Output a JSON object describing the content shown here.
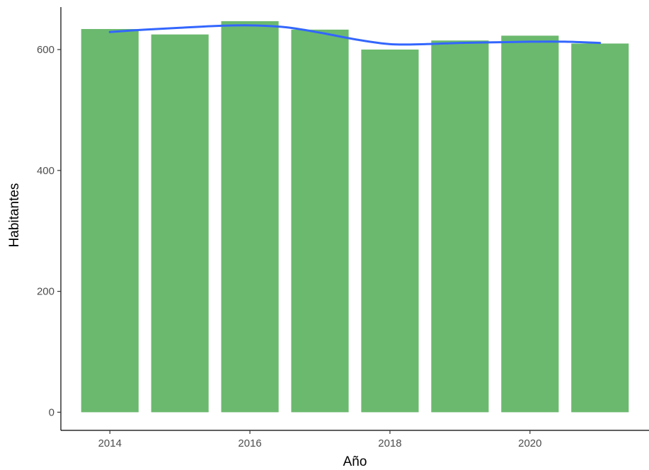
{
  "chart_data": {
    "type": "bar",
    "title": "",
    "xlabel": "Año",
    "ylabel": "Habitantes",
    "categories": [
      "2014",
      "2015",
      "2016",
      "2017",
      "2018",
      "2019",
      "2020",
      "2021"
    ],
    "x": [
      2014,
      2015,
      2016,
      2017,
      2018,
      2019,
      2020,
      2021
    ],
    "values": [
      634,
      625,
      647,
      633,
      600,
      615,
      623,
      610
    ],
    "xlim": [
      2013.3,
      2021.7
    ],
    "ylim": [
      -30,
      682
    ],
    "x_ticks": [
      2014,
      2016,
      2018,
      2020
    ],
    "x_tick_labels": [
      "2014",
      "2016",
      "2018",
      "2020"
    ],
    "y_ticks": [
      0,
      200,
      400,
      600
    ],
    "y_tick_labels": [
      "0",
      "200",
      "400",
      "600"
    ],
    "smooth_line": {
      "x": [
        2014,
        2014.5,
        2015,
        2015.5,
        2016,
        2016.5,
        2017,
        2017.5,
        2018,
        2018.5,
        2019,
        2019.5,
        2020,
        2020.5,
        2021
      ],
      "y": [
        629,
        633,
        636,
        639,
        640,
        637,
        628,
        617,
        609,
        609,
        611,
        612,
        613,
        613,
        611
      ]
    },
    "grid": false,
    "legend": "none",
    "colors": {
      "bar": "#6BB96E",
      "line": "#3366FF",
      "axis": "#000000",
      "tick_text": "#4d4d4d"
    }
  }
}
